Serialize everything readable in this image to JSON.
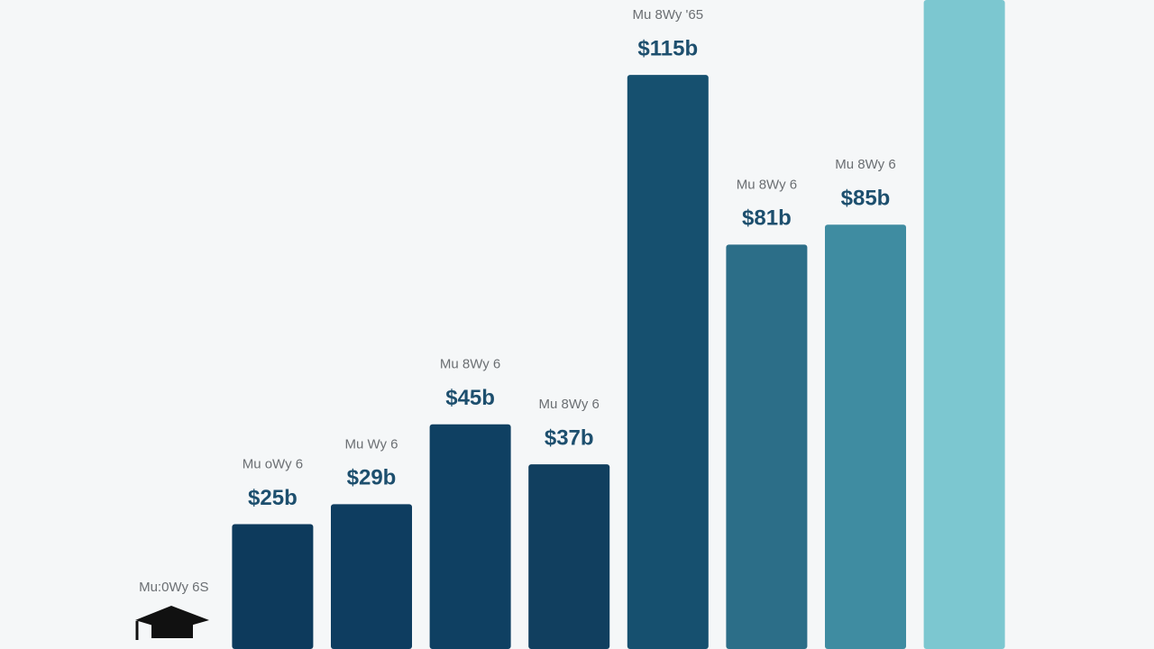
{
  "chart_data": {
    "type": "bar",
    "categories": [
      "Mu:0Wy 6S",
      "Mu oWy 6",
      "Mu Wy 6",
      "Mu 8Wy 6",
      "Mu 8Wy 6",
      "Mu 8Wy '65",
      "Mu 8Wy 6",
      "Mu 8Wy 6",
      null
    ],
    "values": [
      null,
      25,
      29,
      45,
      37,
      115,
      81,
      85,
      130
    ],
    "value_labels": [
      null,
      "$25b",
      "$29b",
      "$45b",
      "$37b",
      "$115b",
      "$81b",
      "$85b",
      null
    ],
    "colors": [
      "#0d3a5c",
      "#0d3a5c",
      "#0e3d60",
      "#0f4062",
      "#113f5f",
      "#16506f",
      "#2c6e88",
      "#3f8ca1",
      "#7cc7d0"
    ]
  }
}
